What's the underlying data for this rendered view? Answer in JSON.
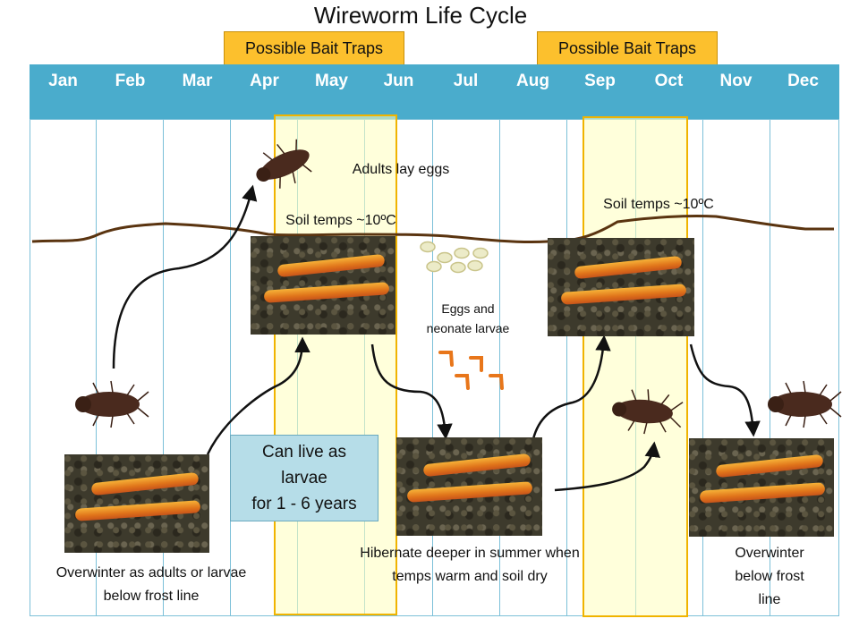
{
  "title": "Wireworm Life Cycle",
  "bait_traps": [
    "Possible Bait Traps",
    "Possible Bait Traps"
  ],
  "months": [
    "Jan",
    "Feb",
    "Mar",
    "Apr",
    "May",
    "Jun",
    "Jul",
    "Aug",
    "Sep",
    "Oct",
    "Nov",
    "Dec"
  ],
  "labels": {
    "adults_lay_eggs": "Adults lay eggs",
    "soil_temps_left": "Soil temps ~10ºC",
    "soil_temps_right": "Soil temps ~10ºC",
    "eggs_line1": "Eggs and",
    "eggs_line2": "neonate larvae",
    "larvae_line1": "Can live as",
    "larvae_line2": "larvae",
    "larvae_line3": "for 1 - 6 years",
    "overwinter_line1": "Overwinter  as adults or larvae",
    "overwinter_line2": "below frost line",
    "hibernate_line1": "Hibernate  deeper in summer when",
    "hibernate_line2": "temps warm and soil dry",
    "overwinter_right_line1": "Overwinter",
    "overwinter_right_line2": "below frost",
    "overwinter_right_line3": "line"
  },
  "colors": {
    "month_bar": "#4aaccc",
    "bait_label": "#fcc02d",
    "highlight_border": "#f0b400",
    "soil_line": "#5a3410",
    "larva_orange": "#e8761a"
  },
  "icons": {
    "beetle": "click-beetle-icon",
    "larva": "wireworm-photo",
    "egg": "egg-icon",
    "neonate": "neonate-larva-icon"
  }
}
